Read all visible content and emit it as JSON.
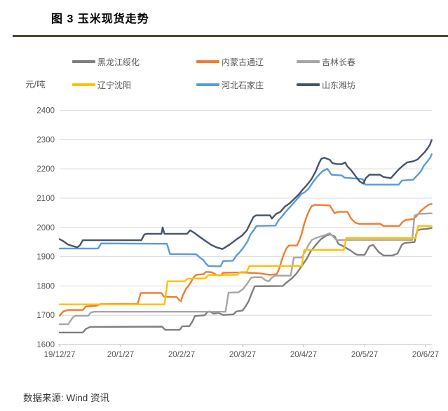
{
  "header": {
    "title": "图 3 玉米现货走势"
  },
  "axis": {
    "unit_label": "元/吨"
  },
  "footer": {
    "source_label": "数据来源: Wind 资讯"
  },
  "chart_data": {
    "type": "line",
    "title": "图 3 玉米现货走势",
    "ylabel": "元/吨",
    "xlabel": "",
    "grid": true,
    "legend_position": "top",
    "ylim": [
      1600,
      2400
    ],
    "y_ticks": [
      1600,
      1700,
      1800,
      1900,
      2000,
      2100,
      2200,
      2300,
      2400
    ],
    "x_tick_labels": [
      "19/12/27",
      "20/1/27",
      "20/2/27",
      "20/3/27",
      "20/4/27",
      "20/5/27",
      "20/6/27"
    ],
    "x_unit_max": 6.1,
    "colors": {
      "grid": "#d9d9d9",
      "axis": "#bfbfbf",
      "tick_text": "#595959"
    },
    "series": [
      {
        "name": "黑龙江绥化",
        "color": "#7f7f7f",
        "points": [
          [
            0,
            1641
          ],
          [
            0.38,
            1641
          ],
          [
            0.43,
            1653
          ],
          [
            0.5,
            1660
          ],
          [
            1.68,
            1661
          ],
          [
            1.73,
            1650
          ],
          [
            1.97,
            1650
          ],
          [
            2.01,
            1662
          ],
          [
            2.13,
            1663
          ],
          [
            2.18,
            1680
          ],
          [
            2.22,
            1697
          ],
          [
            2.38,
            1700
          ],
          [
            2.42,
            1710
          ],
          [
            2.46,
            1713
          ],
          [
            2.53,
            1705
          ],
          [
            2.6,
            1708
          ],
          [
            2.68,
            1701
          ],
          [
            2.85,
            1703
          ],
          [
            2.9,
            1713
          ],
          [
            3,
            1716
          ],
          [
            3.05,
            1730
          ],
          [
            3.1,
            1748
          ],
          [
            3.16,
            1780
          ],
          [
            3.2,
            1799
          ],
          [
            3.66,
            1800
          ],
          [
            3.7,
            1808
          ],
          [
            3.82,
            1828
          ],
          [
            3.89,
            1844
          ],
          [
            3.97,
            1868
          ],
          [
            4.05,
            1892
          ],
          [
            4.11,
            1916
          ],
          [
            4.2,
            1940
          ],
          [
            4.28,
            1959
          ],
          [
            4.37,
            1972
          ],
          [
            4.43,
            1976
          ],
          [
            4.51,
            1969
          ],
          [
            4.57,
            1944
          ],
          [
            4.63,
            1938
          ],
          [
            4.77,
            1921
          ],
          [
            4.85,
            1909
          ],
          [
            4.89,
            1906
          ],
          [
            5,
            1906
          ],
          [
            5.08,
            1936
          ],
          [
            5.14,
            1940
          ],
          [
            5.23,
            1916
          ],
          [
            5.31,
            1904
          ],
          [
            5.46,
            1904
          ],
          [
            5.54,
            1911
          ],
          [
            5.61,
            1940
          ],
          [
            5.66,
            1947
          ],
          [
            5.82,
            1950
          ],
          [
            5.86,
            1988
          ],
          [
            5.91,
            1993
          ],
          [
            6.03,
            1995
          ],
          [
            6.1,
            1998
          ]
        ]
      },
      {
        "name": "内蒙古通辽",
        "color": "#ed7d31",
        "points": [
          [
            0,
            1698
          ],
          [
            0.06,
            1713
          ],
          [
            0.14,
            1718
          ],
          [
            0.38,
            1718
          ],
          [
            0.43,
            1730
          ],
          [
            0.6,
            1732
          ],
          [
            0.67,
            1738
          ],
          [
            1.28,
            1739
          ],
          [
            1.33,
            1776
          ],
          [
            1.67,
            1776
          ],
          [
            1.71,
            1763
          ],
          [
            1.92,
            1762
          ],
          [
            1.96,
            1752
          ],
          [
            1.99,
            1748
          ],
          [
            2.02,
            1768
          ],
          [
            2.07,
            1789
          ],
          [
            2.11,
            1800
          ],
          [
            2.15,
            1812
          ],
          [
            2.2,
            1830
          ],
          [
            2.24,
            1838
          ],
          [
            2.36,
            1840
          ],
          [
            2.4,
            1848
          ],
          [
            2.49,
            1847
          ],
          [
            2.55,
            1840
          ],
          [
            2.59,
            1836
          ],
          [
            2.64,
            1836
          ],
          [
            2.68,
            1845
          ],
          [
            3,
            1846
          ],
          [
            3.28,
            1843
          ],
          [
            3.45,
            1838
          ],
          [
            3.56,
            1840
          ],
          [
            3.6,
            1858
          ],
          [
            3.63,
            1880
          ],
          [
            3.67,
            1905
          ],
          [
            3.72,
            1928
          ],
          [
            3.76,
            1938
          ],
          [
            3.89,
            1938
          ],
          [
            3.93,
            1955
          ],
          [
            3.97,
            1978
          ],
          [
            4.01,
            2012
          ],
          [
            4.05,
            2036
          ],
          [
            4.09,
            2056
          ],
          [
            4.13,
            2072
          ],
          [
            4.18,
            2077
          ],
          [
            4.43,
            2075
          ],
          [
            4.51,
            2048
          ],
          [
            4.56,
            2053
          ],
          [
            4.72,
            2053
          ],
          [
            4.78,
            2030
          ],
          [
            4.85,
            2016
          ],
          [
            4.91,
            2012
          ],
          [
            5.26,
            2012
          ],
          [
            5.31,
            2005
          ],
          [
            5.57,
            2005
          ],
          [
            5.63,
            2020
          ],
          [
            5.68,
            2026
          ],
          [
            5.8,
            2028
          ],
          [
            5.85,
            2038
          ],
          [
            5.92,
            2056
          ],
          [
            6,
            2070
          ],
          [
            6.06,
            2078
          ],
          [
            6.1,
            2080
          ]
        ]
      },
      {
        "name": "吉林长春",
        "color": "#a6a6a6",
        "points": [
          [
            0,
            1669
          ],
          [
            0.14,
            1669
          ],
          [
            0.18,
            1681
          ],
          [
            0.22,
            1693
          ],
          [
            0.26,
            1698
          ],
          [
            0.47,
            1698
          ],
          [
            0.51,
            1709
          ],
          [
            0.57,
            1712
          ],
          [
            2.72,
            1712
          ],
          [
            2.77,
            1777
          ],
          [
            2.93,
            1778
          ],
          [
            3.01,
            1790
          ],
          [
            3.09,
            1812
          ],
          [
            3.14,
            1828
          ],
          [
            3.2,
            1830
          ],
          [
            3.31,
            1830
          ],
          [
            3.37,
            1820
          ],
          [
            3.43,
            1816
          ],
          [
            3.49,
            1830
          ],
          [
            3.53,
            1835
          ],
          [
            3.79,
            1835
          ],
          [
            3.84,
            1897
          ],
          [
            3.97,
            1897
          ],
          [
            4.02,
            1915
          ],
          [
            4.08,
            1940
          ],
          [
            4.14,
            1958
          ],
          [
            4.23,
            1966
          ],
          [
            4.33,
            1972
          ],
          [
            4.43,
            1980
          ],
          [
            4.48,
            1969
          ],
          [
            4.54,
            1956
          ],
          [
            4.6,
            1957
          ],
          [
            5.78,
            1957
          ],
          [
            5.82,
            2040
          ],
          [
            5.88,
            2046
          ],
          [
            6.1,
            2048
          ]
        ]
      },
      {
        "name": "辽宁沈阳",
        "color": "#ffc000",
        "points": [
          [
            0,
            1737
          ],
          [
            1.72,
            1737
          ],
          [
            1.77,
            1816
          ],
          [
            2.05,
            1816
          ],
          [
            2.1,
            1825
          ],
          [
            2.39,
            1826
          ],
          [
            2.44,
            1837
          ],
          [
            2.91,
            1838
          ],
          [
            2.96,
            1847
          ],
          [
            3.07,
            1848
          ],
          [
            3.11,
            1868
          ],
          [
            3.97,
            1868
          ],
          [
            4.01,
            1923
          ],
          [
            4.66,
            1923
          ],
          [
            4.7,
            1964
          ],
          [
            5.84,
            1964
          ],
          [
            5.88,
            2005
          ],
          [
            6.1,
            2005
          ]
        ]
      },
      {
        "name": "河北石家庄",
        "color": "#5b9bd5",
        "points": [
          [
            0,
            1928
          ],
          [
            0.63,
            1928
          ],
          [
            0.68,
            1945
          ],
          [
            1.76,
            1944
          ],
          [
            1.81,
            1909
          ],
          [
            2.24,
            1908
          ],
          [
            2.3,
            1897
          ],
          [
            2.36,
            1888
          ],
          [
            2.4,
            1876
          ],
          [
            2.44,
            1868
          ],
          [
            2.64,
            1867
          ],
          [
            2.68,
            1885
          ],
          [
            2.84,
            1886
          ],
          [
            2.9,
            1904
          ],
          [
            2.94,
            1912
          ],
          [
            3.01,
            1930
          ],
          [
            3.08,
            1952
          ],
          [
            3.13,
            1976
          ],
          [
            3.18,
            1990
          ],
          [
            3.23,
            2005
          ],
          [
            3.54,
            2006
          ],
          [
            3.59,
            2024
          ],
          [
            3.64,
            2036
          ],
          [
            3.7,
            2052
          ],
          [
            3.79,
            2072
          ],
          [
            3.89,
            2096
          ],
          [
            3.97,
            2115
          ],
          [
            4.02,
            2120
          ],
          [
            4.08,
            2132
          ],
          [
            4.16,
            2156
          ],
          [
            4.23,
            2175
          ],
          [
            4.31,
            2192
          ],
          [
            4.39,
            2200
          ],
          [
            4.46,
            2180
          ],
          [
            4.63,
            2177
          ],
          [
            4.67,
            2170
          ],
          [
            4.97,
            2165
          ],
          [
            5.01,
            2146
          ],
          [
            5.56,
            2146
          ],
          [
            5.61,
            2160
          ],
          [
            5.8,
            2163
          ],
          [
            5.85,
            2175
          ],
          [
            5.92,
            2190
          ],
          [
            5.97,
            2210
          ],
          [
            6.03,
            2225
          ],
          [
            6.08,
            2240
          ],
          [
            6.1,
            2250
          ]
        ]
      },
      {
        "name": "山东潍坊",
        "color": "#44546a",
        "points": [
          [
            0,
            1960
          ],
          [
            0.06,
            1953
          ],
          [
            0.14,
            1941
          ],
          [
            0.22,
            1936
          ],
          [
            0.29,
            1932
          ],
          [
            0.33,
            1938
          ],
          [
            0.38,
            1956
          ],
          [
            1.34,
            1956
          ],
          [
            1.39,
            1976
          ],
          [
            1.44,
            1978
          ],
          [
            1.67,
            1978
          ],
          [
            1.69,
            2000
          ],
          [
            1.72,
            1978
          ],
          [
            2.09,
            1978
          ],
          [
            2.14,
            1990
          ],
          [
            2.21,
            1981
          ],
          [
            2.3,
            1967
          ],
          [
            2.39,
            1954
          ],
          [
            2.48,
            1941
          ],
          [
            2.57,
            1932
          ],
          [
            2.67,
            1926
          ],
          [
            2.78,
            1940
          ],
          [
            2.9,
            1959
          ],
          [
            2.99,
            1972
          ],
          [
            3.07,
            1990
          ],
          [
            3.14,
            2020
          ],
          [
            3.18,
            2036
          ],
          [
            3.22,
            2041
          ],
          [
            3.45,
            2041
          ],
          [
            3.48,
            2030
          ],
          [
            3.55,
            2046
          ],
          [
            3.62,
            2053
          ],
          [
            3.7,
            2072
          ],
          [
            3.77,
            2082
          ],
          [
            3.85,
            2098
          ],
          [
            3.92,
            2112
          ],
          [
            3.99,
            2130
          ],
          [
            4.06,
            2146
          ],
          [
            4.13,
            2165
          ],
          [
            4.2,
            2192
          ],
          [
            4.25,
            2218
          ],
          [
            4.29,
            2234
          ],
          [
            4.34,
            2238
          ],
          [
            4.43,
            2231
          ],
          [
            4.47,
            2220
          ],
          [
            4.55,
            2216
          ],
          [
            4.63,
            2216
          ],
          [
            4.68,
            2222
          ],
          [
            4.72,
            2208
          ],
          [
            4.78,
            2195
          ],
          [
            4.85,
            2176
          ],
          [
            4.92,
            2157
          ],
          [
            4.98,
            2149
          ],
          [
            5.02,
            2168
          ],
          [
            5.08,
            2180
          ],
          [
            5.25,
            2180
          ],
          [
            5.31,
            2172
          ],
          [
            5.43,
            2168
          ],
          [
            5.49,
            2182
          ],
          [
            5.57,
            2200
          ],
          [
            5.64,
            2213
          ],
          [
            5.7,
            2222
          ],
          [
            5.8,
            2226
          ],
          [
            5.87,
            2232
          ],
          [
            5.93,
            2245
          ],
          [
            5.99,
            2258
          ],
          [
            6.04,
            2272
          ],
          [
            6.07,
            2282
          ],
          [
            6.1,
            2298
          ]
        ]
      }
    ]
  }
}
